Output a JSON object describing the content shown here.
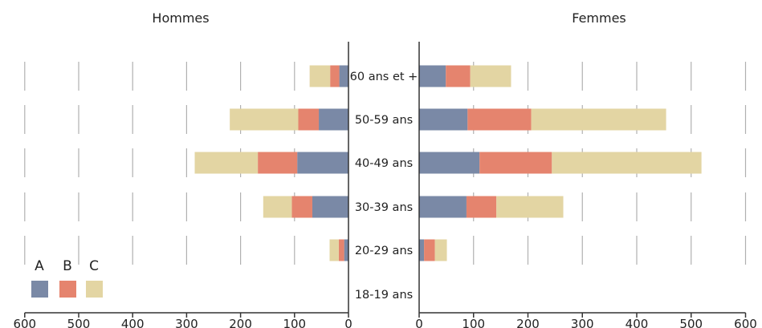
{
  "chart_data": {
    "type": "bar",
    "orientation": "horizontal",
    "layout": "population-pyramid",
    "stacked": true,
    "colors": {
      "A": "#7a89a6",
      "B": "#e5846e",
      "C": "#e3d5a3",
      "grid": "#b0b0b0",
      "axis": "#333333"
    },
    "categories": [
      "60 ans et +",
      "50-59 ans",
      "40-49 ans",
      "30-39 ans",
      "20-29 ans",
      "18-19 ans"
    ],
    "xlim": [
      0,
      600
    ],
    "xticks": [
      0,
      100,
      200,
      300,
      400,
      500,
      600
    ],
    "legend": {
      "position": "bottom-left",
      "labels": [
        "A",
        "B",
        "C"
      ]
    },
    "panels": [
      {
        "title": "Hommes",
        "series": [
          {
            "name": "A",
            "values": [
              17,
              55,
              95,
              67,
              8,
              0
            ]
          },
          {
            "name": "B",
            "values": [
              17,
              38,
              73,
              38,
              10,
              0
            ]
          },
          {
            "name": "C",
            "values": [
              38,
              127,
              117,
              53,
              17,
              0
            ]
          }
        ]
      },
      {
        "title": "Femmes",
        "series": [
          {
            "name": "A",
            "values": [
              49,
              89,
              111,
              87,
              9,
              0
            ]
          },
          {
            "name": "B",
            "values": [
              45,
              117,
              133,
              55,
              20,
              0
            ]
          },
          {
            "name": "C",
            "values": [
              75,
              248,
              275,
              123,
              22,
              0
            ]
          }
        ]
      }
    ]
  }
}
